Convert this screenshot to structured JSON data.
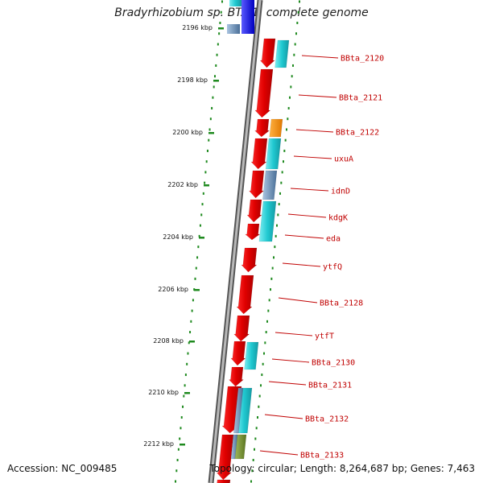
{
  "title": "Bradyrhizobium sp. BTAi1, complete genome",
  "footer": {
    "accession": "Accession: NC_009485",
    "summary": "Topology: circular; Length: 8,264,687 bp; Genes: 7,463"
  },
  "scale": {
    "unit": "kbp",
    "ticks": [
      "2196 kbp",
      "2198 kbp",
      "2200 kbp",
      "2202 kbp",
      "2204 kbp",
      "2206 kbp",
      "2208 kbp",
      "2210 kbp",
      "2212 kbp"
    ]
  },
  "gene_labels": [
    "BBta_2120",
    "BBta_2121",
    "BBta_2122",
    "uxuA",
    "idnD",
    "kdgK",
    "eda",
    "ytfQ",
    "BBta_2128",
    "ytfT",
    "BBta_2130",
    "BBta_2131",
    "BBta_2132",
    "BBta_2133"
  ],
  "colors": {
    "backbone": "#8a8a8a",
    "scale_dots": "#1f8a1f",
    "gene_forward": "#e00000",
    "label": "#c00000",
    "cyan": "#20c8d0",
    "orange": "#f08c00",
    "steel": "#6a8fb8",
    "olive": "#6c8a2c",
    "blue": "#1a1ae0"
  }
}
